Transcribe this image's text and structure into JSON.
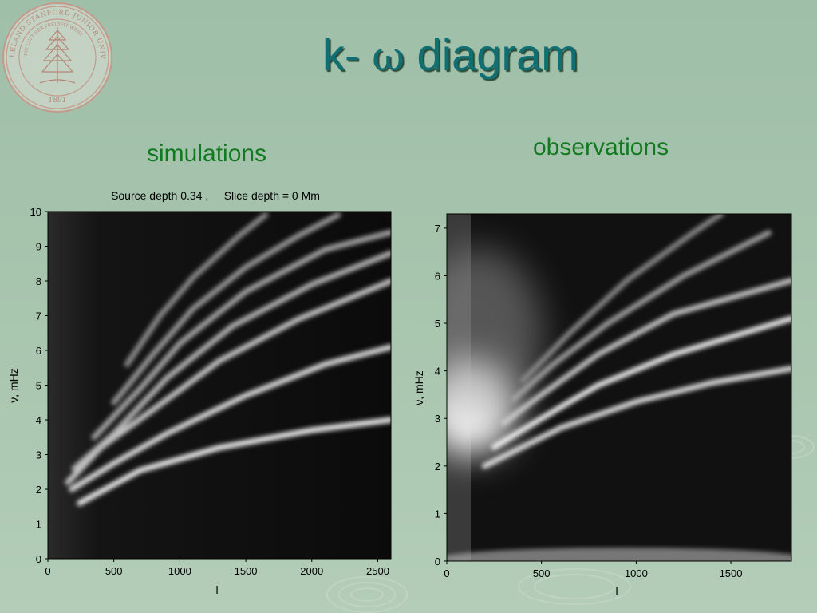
{
  "slide": {
    "title_prefix": "k- ",
    "title_symbol": "ω",
    "title_suffix": " diagram",
    "subtitle_left": "simulations",
    "subtitle_right": "observations",
    "logo_text": "LELAND STANFORD JUNIOR UNIVERSITY",
    "logo_motto": "DIE LUFT DER FREIHEIT WEHT",
    "logo_year": "1891"
  },
  "colors": {
    "title": "#0f6f72",
    "subtitle": "#127a1e",
    "background": "#a7c4ad",
    "seal": "#c49a8c"
  },
  "chart_data": [
    {
      "type": "heatmap",
      "title": "Source depth 0.34 ,     Slice depth = 0 Mm",
      "xlabel": "l",
      "ylabel": "ν, mHz",
      "xlim": [
        0,
        2600
      ],
      "ylim": [
        0,
        10
      ],
      "xticks": [
        0,
        500,
        1000,
        1500,
        2000,
        2500
      ],
      "yticks": [
        0,
        1,
        2,
        3,
        4,
        5,
        6,
        7,
        8,
        9,
        10
      ],
      "colormap": "gray",
      "ridges": [
        {
          "points": [
            [
              240,
              1.6
            ],
            [
              700,
              2.55
            ],
            [
              1300,
              3.2
            ],
            [
              2000,
              3.7
            ],
            [
              2600,
              4.0
            ]
          ],
          "intensity": 0.95
        },
        {
          "points": [
            [
              180,
              2.0
            ],
            [
              500,
              2.75
            ],
            [
              900,
              3.6
            ],
            [
              1500,
              4.7
            ],
            [
              2100,
              5.6
            ],
            [
              2600,
              6.1
            ]
          ],
          "intensity": 0.85
        },
        {
          "points": [
            [
              150,
              2.2
            ],
            [
              400,
              3.2
            ],
            [
              800,
              4.3
            ],
            [
              1300,
              5.7
            ],
            [
              1900,
              6.9
            ],
            [
              2600,
              8.0
            ]
          ],
          "intensity": 0.72
        },
        {
          "points": [
            [
              200,
              2.6
            ],
            [
              500,
              3.6
            ],
            [
              900,
              5.2
            ],
            [
              1400,
              6.7
            ],
            [
              2000,
              7.9
            ],
            [
              2600,
              8.8
            ]
          ],
          "intensity": 0.6
        },
        {
          "points": [
            [
              350,
              3.5
            ],
            [
              700,
              4.9
            ],
            [
              1000,
              6.2
            ],
            [
              1500,
              7.7
            ],
            [
              2100,
              8.9
            ],
            [
              2600,
              9.4
            ]
          ],
          "intensity": 0.5
        },
        {
          "points": [
            [
              500,
              4.5
            ],
            [
              800,
              5.9
            ],
            [
              1100,
              7.2
            ],
            [
              1500,
              8.4
            ],
            [
              1900,
              9.3
            ],
            [
              2200,
              9.9
            ]
          ],
          "intensity": 0.42
        },
        {
          "points": [
            [
              600,
              5.6
            ],
            [
              850,
              7.0
            ],
            [
              1100,
              8.1
            ],
            [
              1450,
              9.3
            ],
            [
              1650,
              9.9
            ]
          ],
          "intensity": 0.35
        }
      ]
    },
    {
      "type": "heatmap",
      "title": "",
      "xlabel": "l",
      "ylabel": "ν, mHz",
      "xlim": [
        0,
        1820
      ],
      "ylim": [
        0,
        7.3
      ],
      "xticks": [
        0,
        500,
        1000,
        1500
      ],
      "yticks": [
        0,
        1,
        2,
        3,
        4,
        5,
        6,
        7
      ],
      "colormap": "gray",
      "ridges": [
        {
          "points": [
            [
              200,
              2.0
            ],
            [
              600,
              2.8
            ],
            [
              1000,
              3.35
            ],
            [
              1400,
              3.75
            ],
            [
              1820,
              4.05
            ]
          ],
          "intensity": 0.85
        },
        {
          "points": [
            [
              250,
              2.4
            ],
            [
              500,
              3.0
            ],
            [
              800,
              3.7
            ],
            [
              1200,
              4.35
            ],
            [
              1820,
              5.1
            ]
          ],
          "intensity": 0.95
        },
        {
          "points": [
            [
              300,
              2.9
            ],
            [
              500,
              3.5
            ],
            [
              800,
              4.35
            ],
            [
              1200,
              5.2
            ],
            [
              1820,
              5.9
            ]
          ],
          "intensity": 0.7
        },
        {
          "points": [
            [
              350,
              3.4
            ],
            [
              550,
              4.1
            ],
            [
              850,
              5.0
            ],
            [
              1250,
              6.0
            ],
            [
              1700,
              6.9
            ]
          ],
          "intensity": 0.45
        },
        {
          "points": [
            [
              400,
              3.8
            ],
            [
              650,
              4.8
            ],
            [
              950,
              5.9
            ],
            [
              1300,
              6.9
            ],
            [
              1450,
              7.3
            ]
          ],
          "intensity": 0.3
        }
      ]
    }
  ]
}
